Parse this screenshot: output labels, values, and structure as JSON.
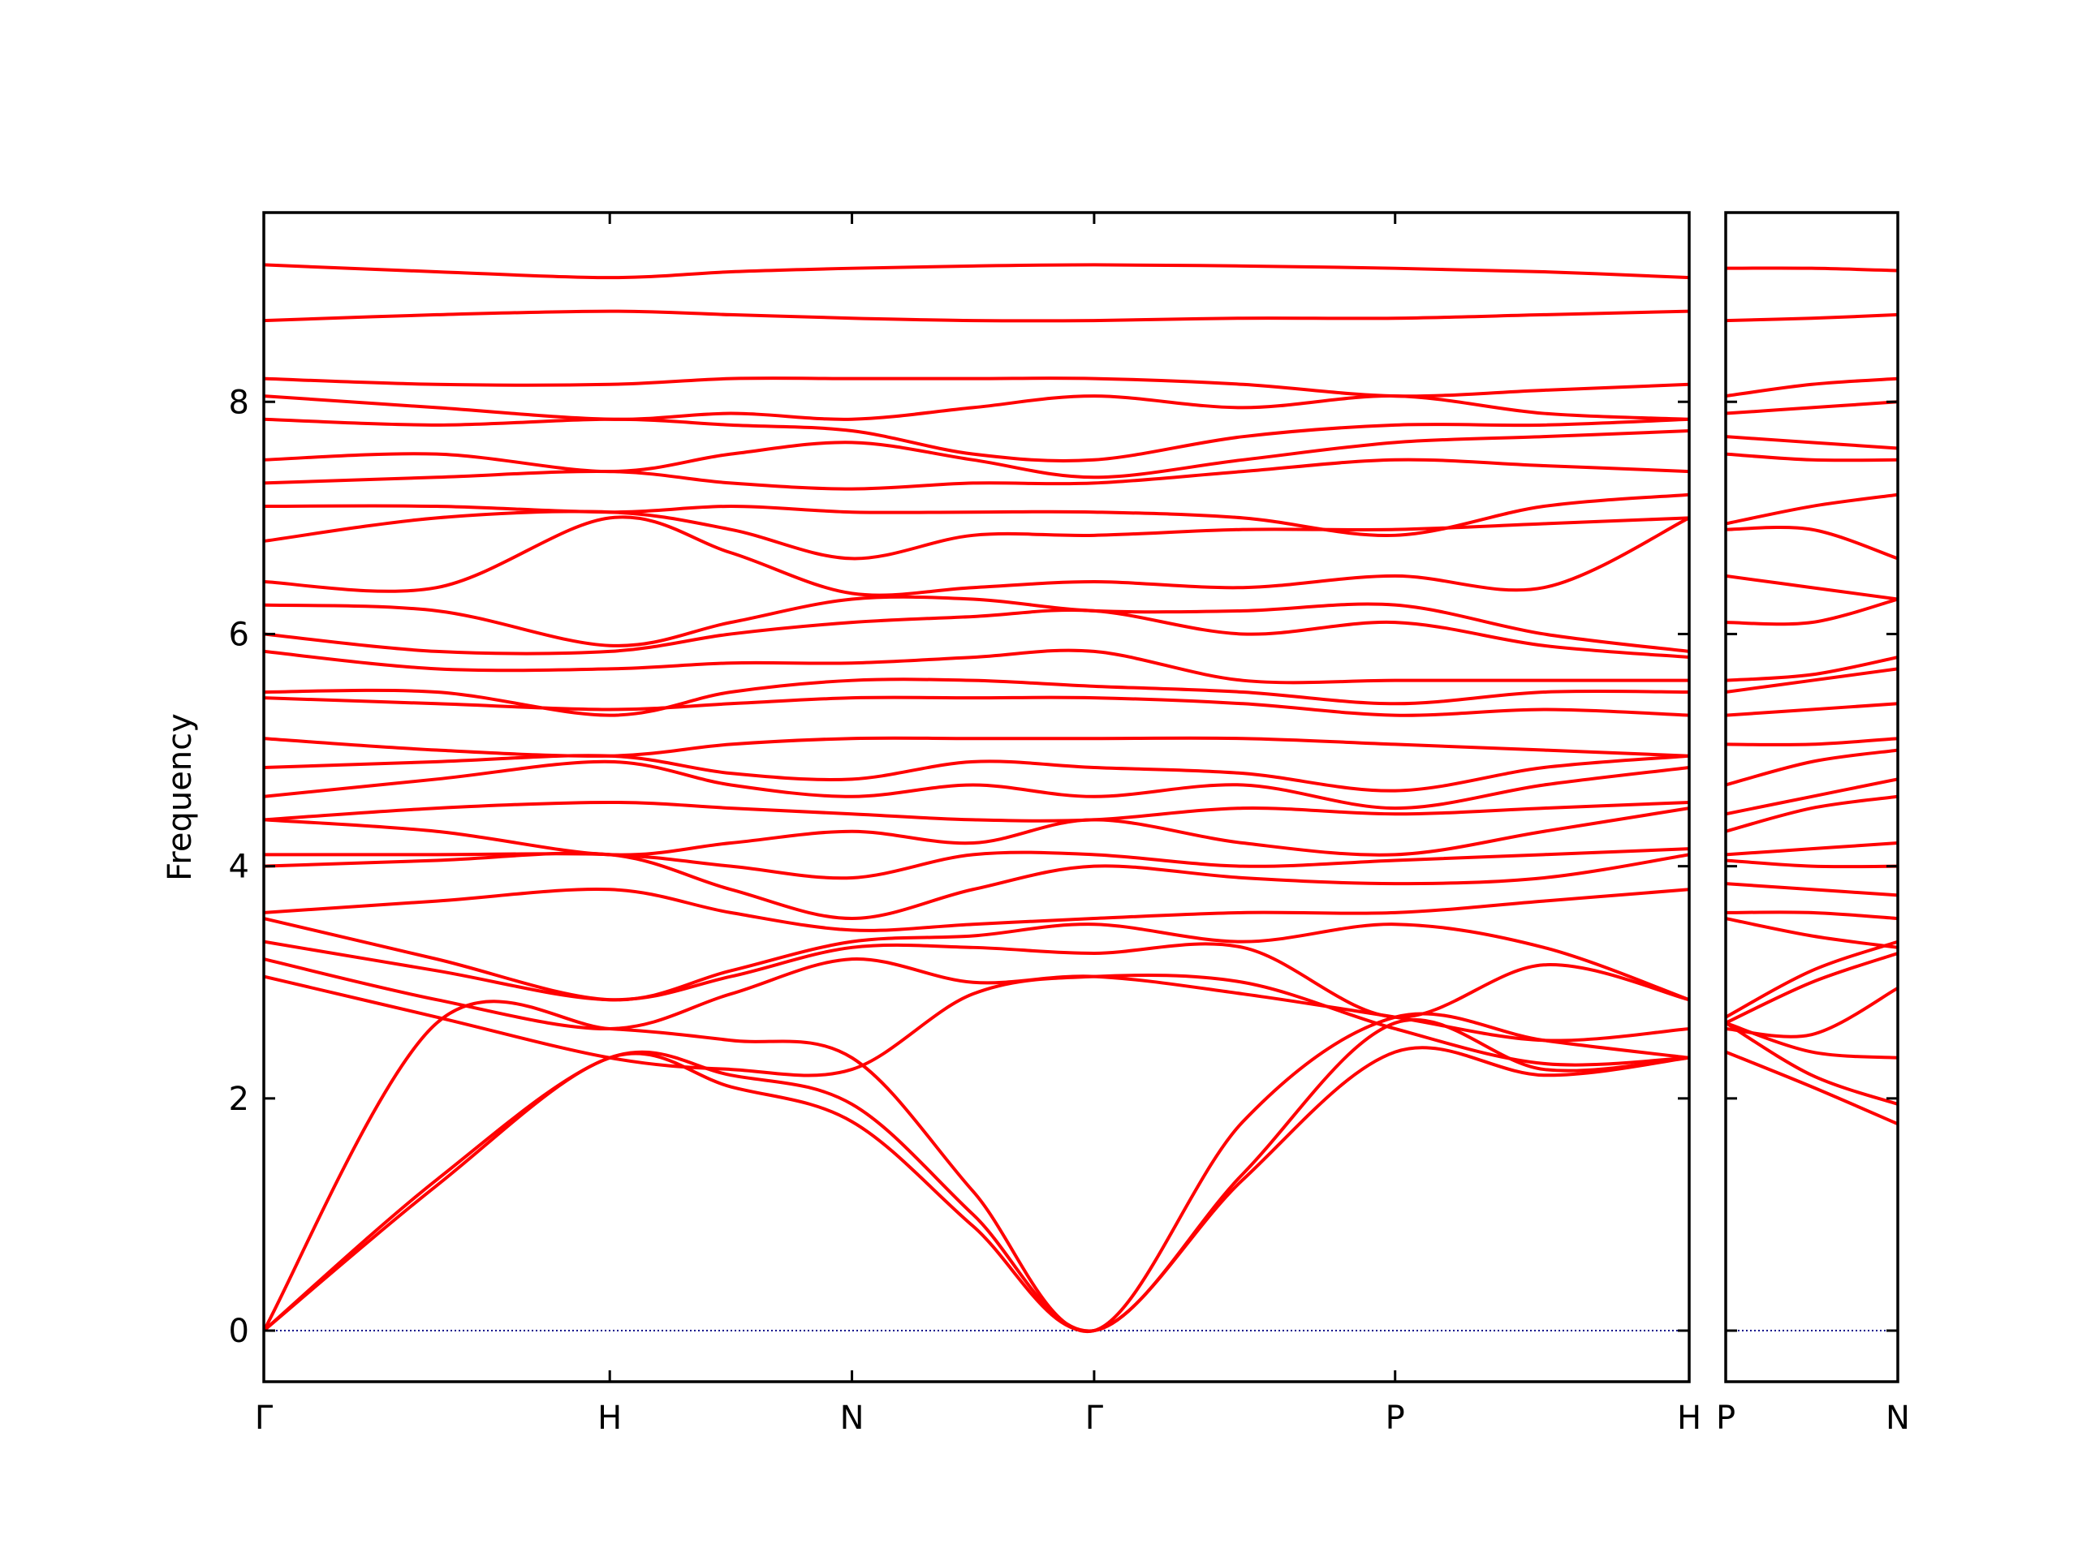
{
  "chart_data": [
    {
      "type": "line",
      "y_label": "Frequency",
      "color": "#ff0000",
      "hline": 0,
      "hline_color": "#00008b",
      "xlim": [
        0,
        4.12
      ],
      "ylim": [
        -0.44,
        9.63
      ],
      "xticks": [
        {
          "value": 0,
          "label": "Γ"
        },
        {
          "value": 1.0,
          "label": "H"
        },
        {
          "value": 1.7,
          "label": "N"
        },
        {
          "value": 2.4,
          "label": "Γ"
        },
        {
          "value": 3.27,
          "label": "P"
        },
        {
          "value": 4.12,
          "label": "H"
        }
      ],
      "yticks": [
        0,
        2,
        4,
        6,
        8
      ],
      "x": [
        0,
        0.5,
        1.0,
        1.35,
        1.7,
        2.05,
        2.4,
        2.83,
        3.27,
        3.7,
        4.12
      ],
      "series": [
        {
          "values": [
            0,
            1.25,
            2.35,
            2.1,
            1.8,
            0.9,
            0,
            1.3,
            2.4,
            2.2,
            2.35
          ]
        },
        {
          "values": [
            0,
            1.3,
            2.35,
            2.2,
            1.95,
            1.0,
            0,
            1.35,
            2.65,
            2.25,
            2.35
          ]
        },
        {
          "values": [
            0,
            2.65,
            2.6,
            2.5,
            2.35,
            1.2,
            0,
            1.8,
            2.7,
            2.5,
            2.35
          ]
        },
        {
          "values": [
            3.05,
            2.7,
            2.35,
            2.25,
            2.25,
            2.9,
            3.05,
            3.0,
            2.6,
            2.3,
            2.35
          ]
        },
        {
          "values": [
            3.2,
            2.85,
            2.6,
            2.9,
            3.2,
            3.0,
            3.05,
            2.9,
            2.7,
            2.5,
            2.6
          ]
        },
        {
          "values": [
            3.35,
            3.1,
            2.85,
            3.05,
            3.3,
            3.3,
            3.25,
            3.3,
            2.7,
            3.15,
            2.85
          ]
        },
        {
          "values": [
            3.55,
            3.2,
            2.85,
            3.1,
            3.35,
            3.4,
            3.5,
            3.35,
            3.5,
            3.3,
            2.85
          ]
        },
        {
          "values": [
            3.6,
            3.7,
            3.8,
            3.6,
            3.45,
            3.5,
            3.55,
            3.6,
            3.6,
            3.7,
            3.8
          ]
        },
        {
          "values": [
            4.0,
            4.05,
            4.1,
            3.8,
            3.55,
            3.8,
            4.0,
            3.9,
            3.85,
            3.9,
            4.1
          ]
        },
        {
          "values": [
            4.1,
            4.1,
            4.1,
            4.0,
            3.9,
            4.1,
            4.1,
            4.0,
            4.05,
            4.1,
            4.15
          ]
        },
        {
          "values": [
            4.4,
            4.3,
            4.1,
            4.2,
            4.3,
            4.2,
            4.4,
            4.2,
            4.1,
            4.3,
            4.5
          ]
        },
        {
          "values": [
            4.4,
            4.5,
            4.55,
            4.5,
            4.45,
            4.4,
            4.4,
            4.5,
            4.45,
            4.5,
            4.55
          ]
        },
        {
          "values": [
            4.6,
            4.75,
            4.9,
            4.7,
            4.6,
            4.7,
            4.6,
            4.7,
            4.5,
            4.7,
            4.85
          ]
        },
        {
          "values": [
            4.85,
            4.9,
            4.95,
            4.8,
            4.75,
            4.9,
            4.85,
            4.8,
            4.65,
            4.85,
            4.95
          ]
        },
        {
          "values": [
            5.1,
            5.0,
            4.95,
            5.05,
            5.1,
            5.1,
            5.1,
            5.1,
            5.05,
            5.0,
            4.95
          ]
        },
        {
          "values": [
            5.45,
            5.4,
            5.35,
            5.4,
            5.45,
            5.45,
            5.45,
            5.4,
            5.3,
            5.35,
            5.3
          ]
        },
        {
          "values": [
            5.5,
            5.5,
            5.3,
            5.5,
            5.6,
            5.6,
            5.55,
            5.5,
            5.4,
            5.5,
            5.5
          ]
        },
        {
          "values": [
            5.85,
            5.7,
            5.7,
            5.75,
            5.75,
            5.8,
            5.85,
            5.6,
            5.6,
            5.6,
            5.6
          ]
        },
        {
          "values": [
            6.0,
            5.85,
            5.85,
            6.0,
            6.1,
            6.15,
            6.2,
            6.0,
            6.1,
            5.9,
            5.8
          ]
        },
        {
          "values": [
            6.25,
            6.2,
            5.9,
            6.1,
            6.3,
            6.3,
            6.2,
            6.2,
            6.25,
            6.0,
            5.85
          ]
        },
        {
          "values": [
            6.45,
            6.4,
            7.0,
            6.7,
            6.35,
            6.4,
            6.45,
            6.4,
            6.5,
            6.4,
            7.0
          ]
        },
        {
          "values": [
            6.8,
            7.0,
            7.05,
            6.9,
            6.65,
            6.85,
            6.85,
            6.9,
            6.9,
            6.95,
            7.0
          ]
        },
        {
          "values": [
            7.1,
            7.1,
            7.05,
            7.1,
            7.05,
            7.05,
            7.05,
            7.0,
            6.85,
            7.1,
            7.2
          ]
        },
        {
          "values": [
            7.3,
            7.35,
            7.4,
            7.3,
            7.25,
            7.3,
            7.3,
            7.4,
            7.5,
            7.45,
            7.4
          ]
        },
        {
          "values": [
            7.5,
            7.55,
            7.4,
            7.55,
            7.65,
            7.5,
            7.35,
            7.5,
            7.65,
            7.7,
            7.75
          ]
        },
        {
          "values": [
            7.85,
            7.8,
            7.85,
            7.8,
            7.75,
            7.55,
            7.5,
            7.7,
            7.8,
            7.8,
            7.85
          ]
        },
        {
          "values": [
            8.05,
            7.95,
            7.85,
            7.9,
            7.85,
            7.95,
            8.05,
            7.95,
            8.05,
            7.9,
            7.85
          ]
        },
        {
          "values": [
            8.2,
            8.15,
            8.15,
            8.2,
            8.2,
            8.2,
            8.2,
            8.15,
            8.05,
            8.1,
            8.15
          ]
        },
        {
          "values": [
            8.7,
            8.75,
            8.78,
            8.75,
            8.72,
            8.7,
            8.7,
            8.72,
            8.72,
            8.75,
            8.78
          ]
        },
        {
          "values": [
            9.18,
            9.12,
            9.07,
            9.12,
            9.15,
            9.17,
            9.18,
            9.17,
            9.15,
            9.12,
            9.07
          ]
        }
      ]
    },
    {
      "type": "line",
      "color": "#ff0000",
      "sharey": true,
      "hline": 0,
      "hline_color": "#00008b",
      "xlim": [
        0,
        0.5
      ],
      "ylim": [
        -0.44,
        9.63
      ],
      "xticks": [
        {
          "value": 0,
          "label": "P"
        },
        {
          "value": 0.5,
          "label": "N"
        }
      ],
      "x": [
        0,
        0.25,
        0.5
      ],
      "series": [
        {
          "values": [
            2.4,
            2.1,
            1.78
          ]
        },
        {
          "values": [
            2.65,
            2.2,
            1.95
          ]
        },
        {
          "values": [
            2.65,
            2.4,
            2.35
          ]
        },
        {
          "values": [
            2.6,
            2.55,
            2.95
          ]
        },
        {
          "values": [
            2.65,
            3.0,
            3.25
          ]
        },
        {
          "values": [
            2.7,
            3.1,
            3.35
          ]
        },
        {
          "values": [
            3.55,
            3.4,
            3.3
          ]
        },
        {
          "values": [
            3.6,
            3.6,
            3.55
          ]
        },
        {
          "values": [
            3.85,
            3.8,
            3.75
          ]
        },
        {
          "values": [
            4.05,
            4.0,
            4.0
          ]
        },
        {
          "values": [
            4.1,
            4.15,
            4.2
          ]
        },
        {
          "values": [
            4.3,
            4.5,
            4.6
          ]
        },
        {
          "values": [
            4.45,
            4.6,
            4.75
          ]
        },
        {
          "values": [
            4.7,
            4.9,
            5.0
          ]
        },
        {
          "values": [
            5.05,
            5.05,
            5.1
          ]
        },
        {
          "values": [
            5.3,
            5.35,
            5.4
          ]
        },
        {
          "values": [
            5.5,
            5.6,
            5.7
          ]
        },
        {
          "values": [
            5.6,
            5.65,
            5.8
          ]
        },
        {
          "values": [
            6.1,
            6.1,
            6.3
          ]
        },
        {
          "values": [
            6.5,
            6.4,
            6.3
          ]
        },
        {
          "values": [
            6.9,
            6.9,
            6.65
          ]
        },
        {
          "values": [
            6.95,
            7.1,
            7.2
          ]
        },
        {
          "values": [
            7.55,
            7.5,
            7.5
          ]
        },
        {
          "values": [
            7.7,
            7.65,
            7.6
          ]
        },
        {
          "values": [
            7.9,
            7.95,
            8.0
          ]
        },
        {
          "values": [
            8.05,
            8.15,
            8.2
          ]
        },
        {
          "values": [
            8.7,
            8.72,
            8.75
          ]
        },
        {
          "values": [
            9.15,
            9.15,
            9.13
          ]
        }
      ]
    }
  ]
}
